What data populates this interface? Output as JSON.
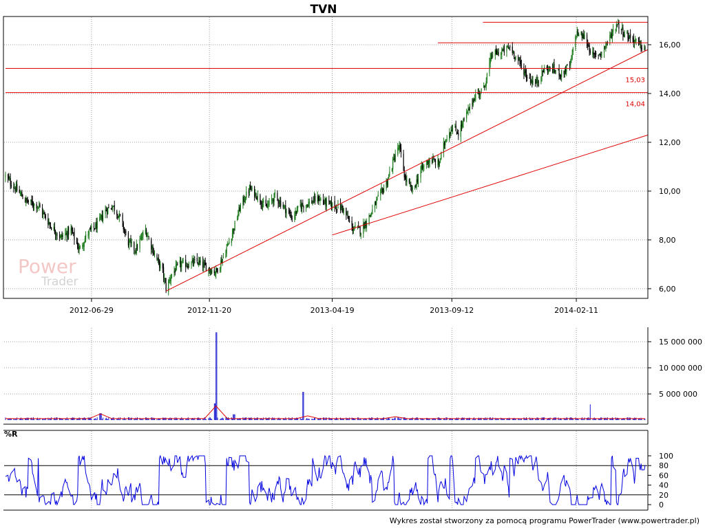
{
  "title": "TVN",
  "footer": "Wykres został stworzony za pomocą programu PowerTrader (www.powertrader.pl)",
  "watermark": {
    "line1": "Power",
    "line2": "Trader"
  },
  "colors": {
    "bull": "#1a7a1a",
    "bear": "#000000",
    "line": "#e00000",
    "volume": "#1a1ad0",
    "wr": "#0000e0",
    "grid": "#9a9a9a"
  },
  "chart_data": [
    {
      "type": "candlestick",
      "title": "TVN",
      "x_ticks": [
        "2012-06-29",
        "2012-11-20",
        "2013-04-19",
        "2013-09-12",
        "2014-02-11"
      ],
      "y_ticks": [
        "6,00",
        "8,00",
        "10,00",
        "12,00",
        "14,00",
        "16,00"
      ],
      "ylim": [
        5.8,
        17.1
      ],
      "x_start": "2012-03-16",
      "x_end": "2014-05-06",
      "anchors": [
        [
          "2012-03-16",
          10.6
        ],
        [
          "2012-03-26",
          10.2
        ],
        [
          "2012-04-10",
          9.6
        ],
        [
          "2012-04-25",
          9.4
        ],
        [
          "2012-05-10",
          8.6
        ],
        [
          "2012-05-22",
          8.1
        ],
        [
          "2012-06-04",
          8.4
        ],
        [
          "2012-06-14",
          7.6
        ],
        [
          "2012-06-25",
          8.3
        ],
        [
          "2012-07-06",
          8.6
        ],
        [
          "2012-07-16",
          9.2
        ],
        [
          "2012-07-25",
          9.4
        ],
        [
          "2012-08-03",
          8.9
        ],
        [
          "2012-08-13",
          7.9
        ],
        [
          "2012-08-22",
          7.6
        ],
        [
          "2012-09-03",
          8.4
        ],
        [
          "2012-09-14",
          7.4
        ],
        [
          "2012-09-24",
          6.7
        ],
        [
          "2012-09-28",
          6.0
        ],
        [
          "2012-10-05",
          6.6
        ],
        [
          "2012-10-15",
          7.0
        ],
        [
          "2012-10-25",
          7.0
        ],
        [
          "2012-11-05",
          7.1
        ],
        [
          "2012-11-20",
          6.8
        ],
        [
          "2012-11-28",
          6.7
        ],
        [
          "2012-12-07",
          7.3
        ],
        [
          "2012-12-18",
          8.3
        ],
        [
          "2012-12-28",
          9.4
        ],
        [
          "2013-01-08",
          10.1
        ],
        [
          "2013-01-18",
          9.8
        ],
        [
          "2013-01-28",
          9.3
        ],
        [
          "2013-02-08",
          9.8
        ],
        [
          "2013-02-18",
          9.4
        ],
        [
          "2013-03-01",
          8.9
        ],
        [
          "2013-03-11",
          9.4
        ],
        [
          "2013-03-21",
          9.5
        ],
        [
          "2013-04-02",
          9.7
        ],
        [
          "2013-04-12",
          9.5
        ],
        [
          "2013-04-22",
          9.4
        ],
        [
          "2013-05-02",
          9.3
        ],
        [
          "2013-05-13",
          8.5
        ],
        [
          "2013-05-24",
          8.4
        ],
        [
          "2013-06-04",
          9.0
        ],
        [
          "2013-06-14",
          9.7
        ],
        [
          "2013-06-25",
          10.4
        ],
        [
          "2013-07-05",
          11.5
        ],
        [
          "2013-07-10",
          11.8
        ],
        [
          "2013-07-17",
          10.5
        ],
        [
          "2013-07-26",
          10.0
        ],
        [
          "2013-08-06",
          10.9
        ],
        [
          "2013-08-16",
          11.3
        ],
        [
          "2013-08-27",
          11.1
        ],
        [
          "2013-09-05",
          12.2
        ],
        [
          "2013-09-12",
          12.6
        ],
        [
          "2013-09-20",
          12.4
        ],
        [
          "2013-10-01",
          13.2
        ],
        [
          "2013-10-10",
          13.9
        ],
        [
          "2013-10-21",
          14.2
        ],
        [
          "2013-10-31",
          15.6
        ],
        [
          "2013-11-12",
          15.7
        ],
        [
          "2013-11-22",
          15.9
        ],
        [
          "2013-12-03",
          15.3
        ],
        [
          "2013-12-13",
          14.7
        ],
        [
          "2013-12-23",
          14.4
        ],
        [
          "2014-01-03",
          15.0
        ],
        [
          "2014-01-14",
          15.0
        ],
        [
          "2014-01-24",
          14.8
        ],
        [
          "2014-02-04",
          15.2
        ],
        [
          "2014-02-11",
          16.5
        ],
        [
          "2014-02-21",
          16.3
        ],
        [
          "2014-03-04",
          15.5
        ],
        [
          "2014-03-14",
          15.7
        ],
        [
          "2014-03-24",
          16.3
        ],
        [
          "2014-04-02",
          16.9
        ],
        [
          "2014-04-10",
          16.5
        ],
        [
          "2014-04-22",
          16.2
        ],
        [
          "2014-05-06",
          15.8
        ]
      ],
      "horizontal_lines": [
        {
          "value": 16.92,
          "from": "2013-10-20",
          "label": ""
        },
        {
          "value": 16.08,
          "from": "2013-08-26",
          "label": ""
        },
        {
          "value": 15.03,
          "from": "2012-03-16",
          "label": "15,03"
        },
        {
          "value": 14.04,
          "from": "2012-03-16",
          "label": "14,04"
        }
      ],
      "trend_lines": [
        {
          "from": [
            "2012-09-28",
            5.9
          ],
          "to": [
            "2014-05-06",
            15.8
          ]
        },
        {
          "from": [
            "2013-04-19",
            8.2
          ],
          "to": [
            "2014-05-06",
            12.3
          ]
        }
      ]
    },
    {
      "type": "bar",
      "name": "volume",
      "y_ticks": [
        "5 000 000",
        "10 000 000",
        "15 000 000"
      ],
      "ylim": [
        0,
        17500000
      ],
      "typical": 300000,
      "spikes": [
        [
          "2012-11-28",
          16800000
        ],
        [
          "2012-11-26",
          3200000
        ],
        [
          "2013-03-15",
          5400000
        ],
        [
          "2014-03-01",
          3000000
        ],
        [
          "2012-07-10",
          1300000
        ],
        [
          "2012-12-20",
          1100000
        ]
      ],
      "moving_average_bumps": [
        [
          "2012-07-10",
          1200000
        ],
        [
          "2012-11-28",
          2700000
        ],
        [
          "2013-03-20",
          800000
        ],
        [
          "2013-07-05",
          650000
        ]
      ]
    },
    {
      "type": "line",
      "name": "%R",
      "label": "%R",
      "y_ticks": [
        "0",
        "20",
        "40",
        "60",
        "80",
        "100"
      ],
      "ylim": [
        0,
        100
      ],
      "ref_lines": [
        20,
        80
      ]
    }
  ]
}
